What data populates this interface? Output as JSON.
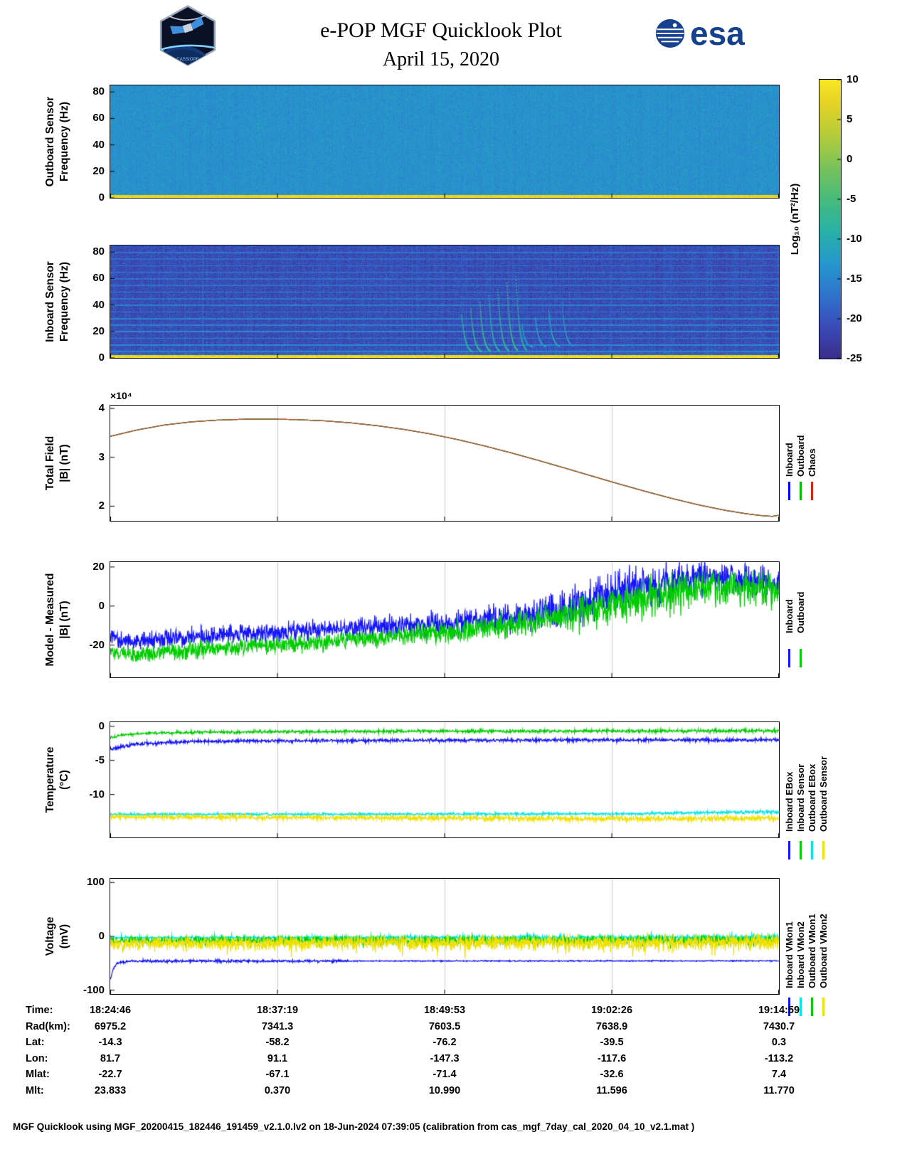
{
  "header": {
    "title": "e-POP MGF Quicklook Plot",
    "date": "April 15, 2020",
    "esa_logo_text": "esa",
    "mission_patch_text": "CASSIOPE"
  },
  "colorbar": {
    "label": "Log₁₀ (nT²/Hz)",
    "tick_values": [
      10,
      5,
      0,
      -5,
      -10,
      -15,
      -20,
      -25
    ],
    "ticks": [
      "10",
      "5",
      "0",
      "-5",
      "-10",
      "-15",
      "-20",
      "-25"
    ],
    "stops": [
      [
        -25,
        "#3a2d8a"
      ],
      [
        -21,
        "#3a4ab8"
      ],
      [
        -17,
        "#2f74cc"
      ],
      [
        -13,
        "#2697cd"
      ],
      [
        -9,
        "#27b1a7"
      ],
      [
        -5,
        "#46bb7c"
      ],
      [
        -1,
        "#78c25a"
      ],
      [
        3,
        "#b5cc3c"
      ],
      [
        7,
        "#e4d226"
      ],
      [
        10,
        "#f9e721"
      ]
    ]
  },
  "chart_data": [
    {
      "id": "outboard-spectrogram",
      "type": "heatmap",
      "ylabel": "Outboard Sensor\nFrequency (Hz)",
      "ylim": [
        0,
        85
      ],
      "yticks": [
        0,
        20,
        40,
        60,
        80
      ],
      "ytick_labels": [
        "0",
        "20",
        "40",
        "60",
        "80"
      ],
      "time_range": [
        "18:24:46",
        "19:14:59"
      ],
      "zunits": "Log₁₀ (nT²/Hz)",
      "base_level": -13.6,
      "noise_sigma": 1.1,
      "col_sigma": 0.3,
      "streak_prob": 0.012,
      "streak_amp": 1.6,
      "speckle_prob": 0.0015,
      "bottom_band": {
        "fmax": 2.4,
        "level": 7.5
      }
    },
    {
      "id": "inboard-spectrogram",
      "type": "heatmap",
      "ylabel": "Inboard Sensor\nFrequency (Hz)",
      "ylim": [
        0,
        85
      ],
      "yticks": [
        0,
        20,
        40,
        60,
        80
      ],
      "ytick_labels": [
        "0",
        "20",
        "40",
        "60",
        "80"
      ],
      "time_range": [
        "18:24:46",
        "19:14:59"
      ],
      "zunits": "Log₁₀ (nT²/Hz)",
      "base_level": -20.8,
      "noise_sigma": 1.3,
      "col_sigma": 0.55,
      "streak_prob": 0.02,
      "streak_amp": 2.2,
      "speckle_prob": 0.001,
      "bottom_band": {
        "fmax": 2.4,
        "level": 7.5
      },
      "low_glow": {
        "fmax": 9,
        "gain": 0.28
      },
      "harmonics": {
        "spacing": 5,
        "level": -15.2
      },
      "chirp_groups": [
        {
          "x_start": 0.525,
          "dx": 0.0135,
          "count": 7,
          "f_top": 62,
          "f_bottom": 4,
          "level": -8
        },
        {
          "x_start": 0.615,
          "dx": 0.02,
          "count": 4,
          "f_top": 42,
          "f_bottom": 8,
          "level": -13
        }
      ]
    },
    {
      "id": "total-field",
      "type": "line",
      "ylabel": "Total Field\n|B| (nT)",
      "scale_label": "×10⁴",
      "ylim": [
        17000,
        40600
      ],
      "yticks": [
        20000,
        30000,
        40000
      ],
      "ytick_labels": [
        "2",
        "3",
        "4"
      ],
      "shared_points": [
        [
          0,
          34300
        ],
        [
          0.04,
          35600
        ],
        [
          0.08,
          36600
        ],
        [
          0.12,
          37250
        ],
        [
          0.16,
          37620
        ],
        [
          0.2,
          37800
        ],
        [
          0.24,
          37830
        ],
        [
          0.28,
          37720
        ],
        [
          0.32,
          37470
        ],
        [
          0.36,
          37060
        ],
        [
          0.4,
          36460
        ],
        [
          0.44,
          35700
        ],
        [
          0.48,
          34760
        ],
        [
          0.52,
          33620
        ],
        [
          0.56,
          32320
        ],
        [
          0.6,
          30900
        ],
        [
          0.64,
          29380
        ],
        [
          0.68,
          27800
        ],
        [
          0.72,
          26180
        ],
        [
          0.76,
          24580
        ],
        [
          0.8,
          23040
        ],
        [
          0.84,
          21580
        ],
        [
          0.88,
          20260
        ],
        [
          0.92,
          19140
        ],
        [
          0.95,
          18480
        ],
        [
          0.97,
          18120
        ],
        [
          0.99,
          17920
        ],
        [
          1,
          18150
        ]
      ],
      "series": [
        {
          "name": "Inboard",
          "color": "#0000ff",
          "use_shared": true
        },
        {
          "name": "Outboard",
          "color": "#00bb00",
          "use_shared": true
        },
        {
          "name": "Chaos",
          "color": "#bf4a18",
          "use_shared": true
        }
      ],
      "legend": [
        {
          "label": "Inboard",
          "color": "#0000ff"
        },
        {
          "label": "Outboard",
          "color": "#00bb00"
        },
        {
          "label": "Chaos",
          "color": "#dd2211"
        }
      ]
    },
    {
      "id": "model-minus-measured",
      "type": "line",
      "ylabel": "Model - Measured\n|B| (nT)",
      "ylim": [
        -36.5,
        22.5
      ],
      "yticks": [
        -20,
        0,
        20
      ],
      "ytick_labels": [
        "-20",
        "0",
        "20"
      ],
      "series": [
        {
          "name": "Inboard",
          "color": "#1414ff",
          "points": [
            [
              0,
              -16
            ],
            [
              0.03,
              -18
            ],
            [
              0.06,
              -17.5
            ],
            [
              0.1,
              -16
            ],
            [
              0.14,
              -15
            ],
            [
              0.18,
              -14
            ],
            [
              0.22,
              -13.5
            ],
            [
              0.26,
              -13
            ],
            [
              0.3,
              -12.5
            ],
            [
              0.34,
              -12
            ],
            [
              0.38,
              -11.5
            ],
            [
              0.42,
              -10.5
            ],
            [
              0.46,
              -9.5
            ],
            [
              0.5,
              -9
            ],
            [
              0.54,
              -8
            ],
            [
              0.58,
              -6.5
            ],
            [
              0.62,
              -5
            ],
            [
              0.66,
              -2.5
            ],
            [
              0.7,
              1
            ],
            [
              0.74,
              5
            ],
            [
              0.78,
              9
            ],
            [
              0.82,
              12
            ],
            [
              0.86,
              14
            ],
            [
              0.9,
              15
            ],
            [
              0.94,
              14.5
            ],
            [
              0.97,
              13
            ],
            [
              1,
              10
            ]
          ],
          "noise": [
            [
              0,
              2.2
            ],
            [
              0.4,
              2.5
            ],
            [
              0.6,
              3.5
            ],
            [
              0.7,
              5
            ],
            [
              0.8,
              5.5
            ],
            [
              0.9,
              4
            ],
            [
              1,
              3.5
            ]
          ],
          "spikes": {
            "prob": 0.008,
            "amp": [
              -12,
              2
            ]
          }
        },
        {
          "name": "Outboard",
          "color": "#00cc00",
          "points": [
            [
              0,
              -23
            ],
            [
              0.03,
              -25
            ],
            [
              0.06,
              -24.5
            ],
            [
              0.1,
              -23.5
            ],
            [
              0.15,
              -22
            ],
            [
              0.2,
              -21
            ],
            [
              0.25,
              -20
            ],
            [
              0.3,
              -19
            ],
            [
              0.35,
              -17.5
            ],
            [
              0.4,
              -16
            ],
            [
              0.45,
              -14.5
            ],
            [
              0.5,
              -13
            ],
            [
              0.55,
              -11.5
            ],
            [
              0.6,
              -9.5
            ],
            [
              0.65,
              -7
            ],
            [
              0.7,
              -4
            ],
            [
              0.75,
              0
            ],
            [
              0.8,
              4
            ],
            [
              0.85,
              7
            ],
            [
              0.9,
              9.5
            ],
            [
              0.95,
              9.5
            ],
            [
              1,
              7
            ]
          ],
          "noise": [
            [
              0,
              2
            ],
            [
              0.4,
              2.2
            ],
            [
              0.6,
              3
            ],
            [
              0.7,
              4.5
            ],
            [
              0.8,
              5
            ],
            [
              0.9,
              4.5
            ],
            [
              1,
              4
            ]
          ]
        }
      ],
      "legend": [
        {
          "label": "Inboard",
          "color": "#1414ff"
        },
        {
          "label": "Outboard",
          "color": "#00cc00"
        }
      ]
    },
    {
      "id": "temperature",
      "type": "line",
      "ylabel": "Temperature\n(°C)",
      "ylim": [
        -16.3,
        0.6
      ],
      "yticks": [
        0,
        -5,
        -10
      ],
      "ytick_labels": [
        "0",
        "-5",
        "-10"
      ],
      "series": [
        {
          "name": "Inboard EBox",
          "color": "#1414ff",
          "points": [
            [
              0,
              -3.4
            ],
            [
              0.02,
              -2.9
            ],
            [
              0.05,
              -2.55
            ],
            [
              0.1,
              -2.3
            ],
            [
              0.2,
              -2.15
            ],
            [
              0.5,
              -2.05
            ],
            [
              1,
              -2.0
            ]
          ],
          "noise": [
            [
              0,
              0.12
            ],
            [
              1,
              0.12
            ]
          ]
        },
        {
          "name": "Inboard Sensor",
          "color": "#00cc00",
          "points": [
            [
              0,
              -1.7
            ],
            [
              0.02,
              -1.25
            ],
            [
              0.06,
              -1.0
            ],
            [
              0.15,
              -0.85
            ],
            [
              0.4,
              -0.75
            ],
            [
              1,
              -0.65
            ]
          ],
          "noise": [
            [
              0,
              0.1
            ],
            [
              1,
              0.12
            ]
          ]
        },
        {
          "name": "Outboard EBox",
          "color": "#00e6e6",
          "points": [
            [
              0,
              -12.9
            ],
            [
              0.5,
              -12.88
            ],
            [
              0.8,
              -12.8
            ],
            [
              0.9,
              -12.62
            ],
            [
              1,
              -12.55
            ]
          ],
          "noise": [
            [
              0,
              0.08
            ],
            [
              0.9,
              0.1
            ],
            [
              1,
              0.14
            ]
          ]
        },
        {
          "name": "Outboard Sensor",
          "color": "#f0e000",
          "points": [
            [
              0,
              -13.25
            ],
            [
              0.3,
              -13.4
            ],
            [
              0.6,
              -13.5
            ],
            [
              0.85,
              -13.55
            ],
            [
              1,
              -13.45
            ]
          ],
          "noise": [
            [
              0,
              0.15
            ],
            [
              1,
              0.2
            ]
          ],
          "spikes": {
            "prob": 0.01,
            "amp": [
              -0.5,
              0.5
            ]
          }
        }
      ],
      "legend": [
        {
          "label": "Inboard EBox",
          "color": "#1414ff"
        },
        {
          "label": "Inboard Sensor",
          "color": "#00cc00"
        },
        {
          "label": "Outboard EBox",
          "color": "#00e6e6"
        },
        {
          "label": "Outboard Sensor",
          "color": "#f2e300"
        }
      ]
    },
    {
      "id": "voltage",
      "type": "line",
      "ylabel": "Voltage\n(mV)",
      "ylim": [
        -107,
        107
      ],
      "yticks": [
        -100,
        0,
        100
      ],
      "ytick_labels": [
        "-100",
        "0",
        "100"
      ],
      "series": [
        {
          "name": "Inboard VMon1",
          "color": "#1414ff",
          "points": [
            [
              0,
              -82
            ],
            [
              0.004,
              -62
            ],
            [
              0.01,
              -50
            ],
            [
              0.03,
              -46
            ],
            [
              1,
              -45.5
            ]
          ],
          "noise": [
            [
              0,
              1.2
            ],
            [
              0.35,
              1.2
            ],
            [
              0.36,
              0.5
            ],
            [
              1,
              0.5
            ]
          ]
        },
        {
          "name": "Inboard VMon2",
          "color": "#00e6e6",
          "points": [
            [
              0,
              -2.5
            ],
            [
              1,
              -2.0
            ]
          ],
          "noise": [
            [
              0,
              0.8
            ],
            [
              0.3,
              1.2
            ],
            [
              1,
              2.2
            ]
          ],
          "spikes": {
            "prob": 0.05,
            "amp": [
              0,
              6
            ]
          }
        },
        {
          "name": "Outboard VMon1",
          "color": "#00cc00",
          "points": [
            [
              0,
              -8
            ],
            [
              1,
              -7
            ]
          ],
          "noise": [
            [
              0,
              3.2
            ],
            [
              1,
              4.2
            ]
          ],
          "spikes": {
            "prob": 0.04,
            "amp": [
              -8,
              3
            ]
          }
        },
        {
          "name": "Outboard VMon2",
          "color": "#f0e000",
          "points": [
            [
              0,
              -13
            ],
            [
              1,
              -11
            ]
          ],
          "noise": [
            [
              0,
              5.5
            ],
            [
              1,
              7.5
            ]
          ],
          "spikes": {
            "prob": 0.07,
            "amp": [
              -20,
              4
            ]
          }
        }
      ],
      "legend": [
        {
          "label": "Inboard VMon1",
          "color": "#1414ff"
        },
        {
          "label": "Inboard VMon2",
          "color": "#00e6e6"
        },
        {
          "label": "Outboard VMon1",
          "color": "#00cc00"
        },
        {
          "label": "Outboard VMon2",
          "color": "#f2e300"
        }
      ]
    }
  ],
  "bottom_axis": {
    "rows": [
      {
        "label": "Time:",
        "values": [
          "18:24:46",
          "18:37:19",
          "18:49:53",
          "19:02:26",
          "19:14:59"
        ]
      },
      {
        "label": "Rad(km):",
        "values": [
          "6975.2",
          "7341.3",
          "7603.5",
          "7638.9",
          "7430.7"
        ]
      },
      {
        "label": "Lat:",
        "values": [
          "-14.3",
          "-58.2",
          "-76.2",
          "-39.5",
          "0.3"
        ]
      },
      {
        "label": "Lon:",
        "values": [
          "81.7",
          "91.1",
          "-147.3",
          "-117.6",
          "-113.2"
        ]
      },
      {
        "label": "Mlat:",
        "values": [
          "-22.7",
          "-67.1",
          "-71.4",
          "-32.6",
          "7.4"
        ]
      },
      {
        "label": "Mlt:",
        "values": [
          "23.833",
          "0.370",
          "10.990",
          "11.596",
          "11.770"
        ]
      }
    ]
  },
  "footer": "MGF Quicklook using MGF_20200415_182446_191459_v2.1.0.lv2 on 18-Jun-2024 07:39:05 (calibration from cas_mgf_7day_cal_2020_04_10_v2.1.mat )"
}
